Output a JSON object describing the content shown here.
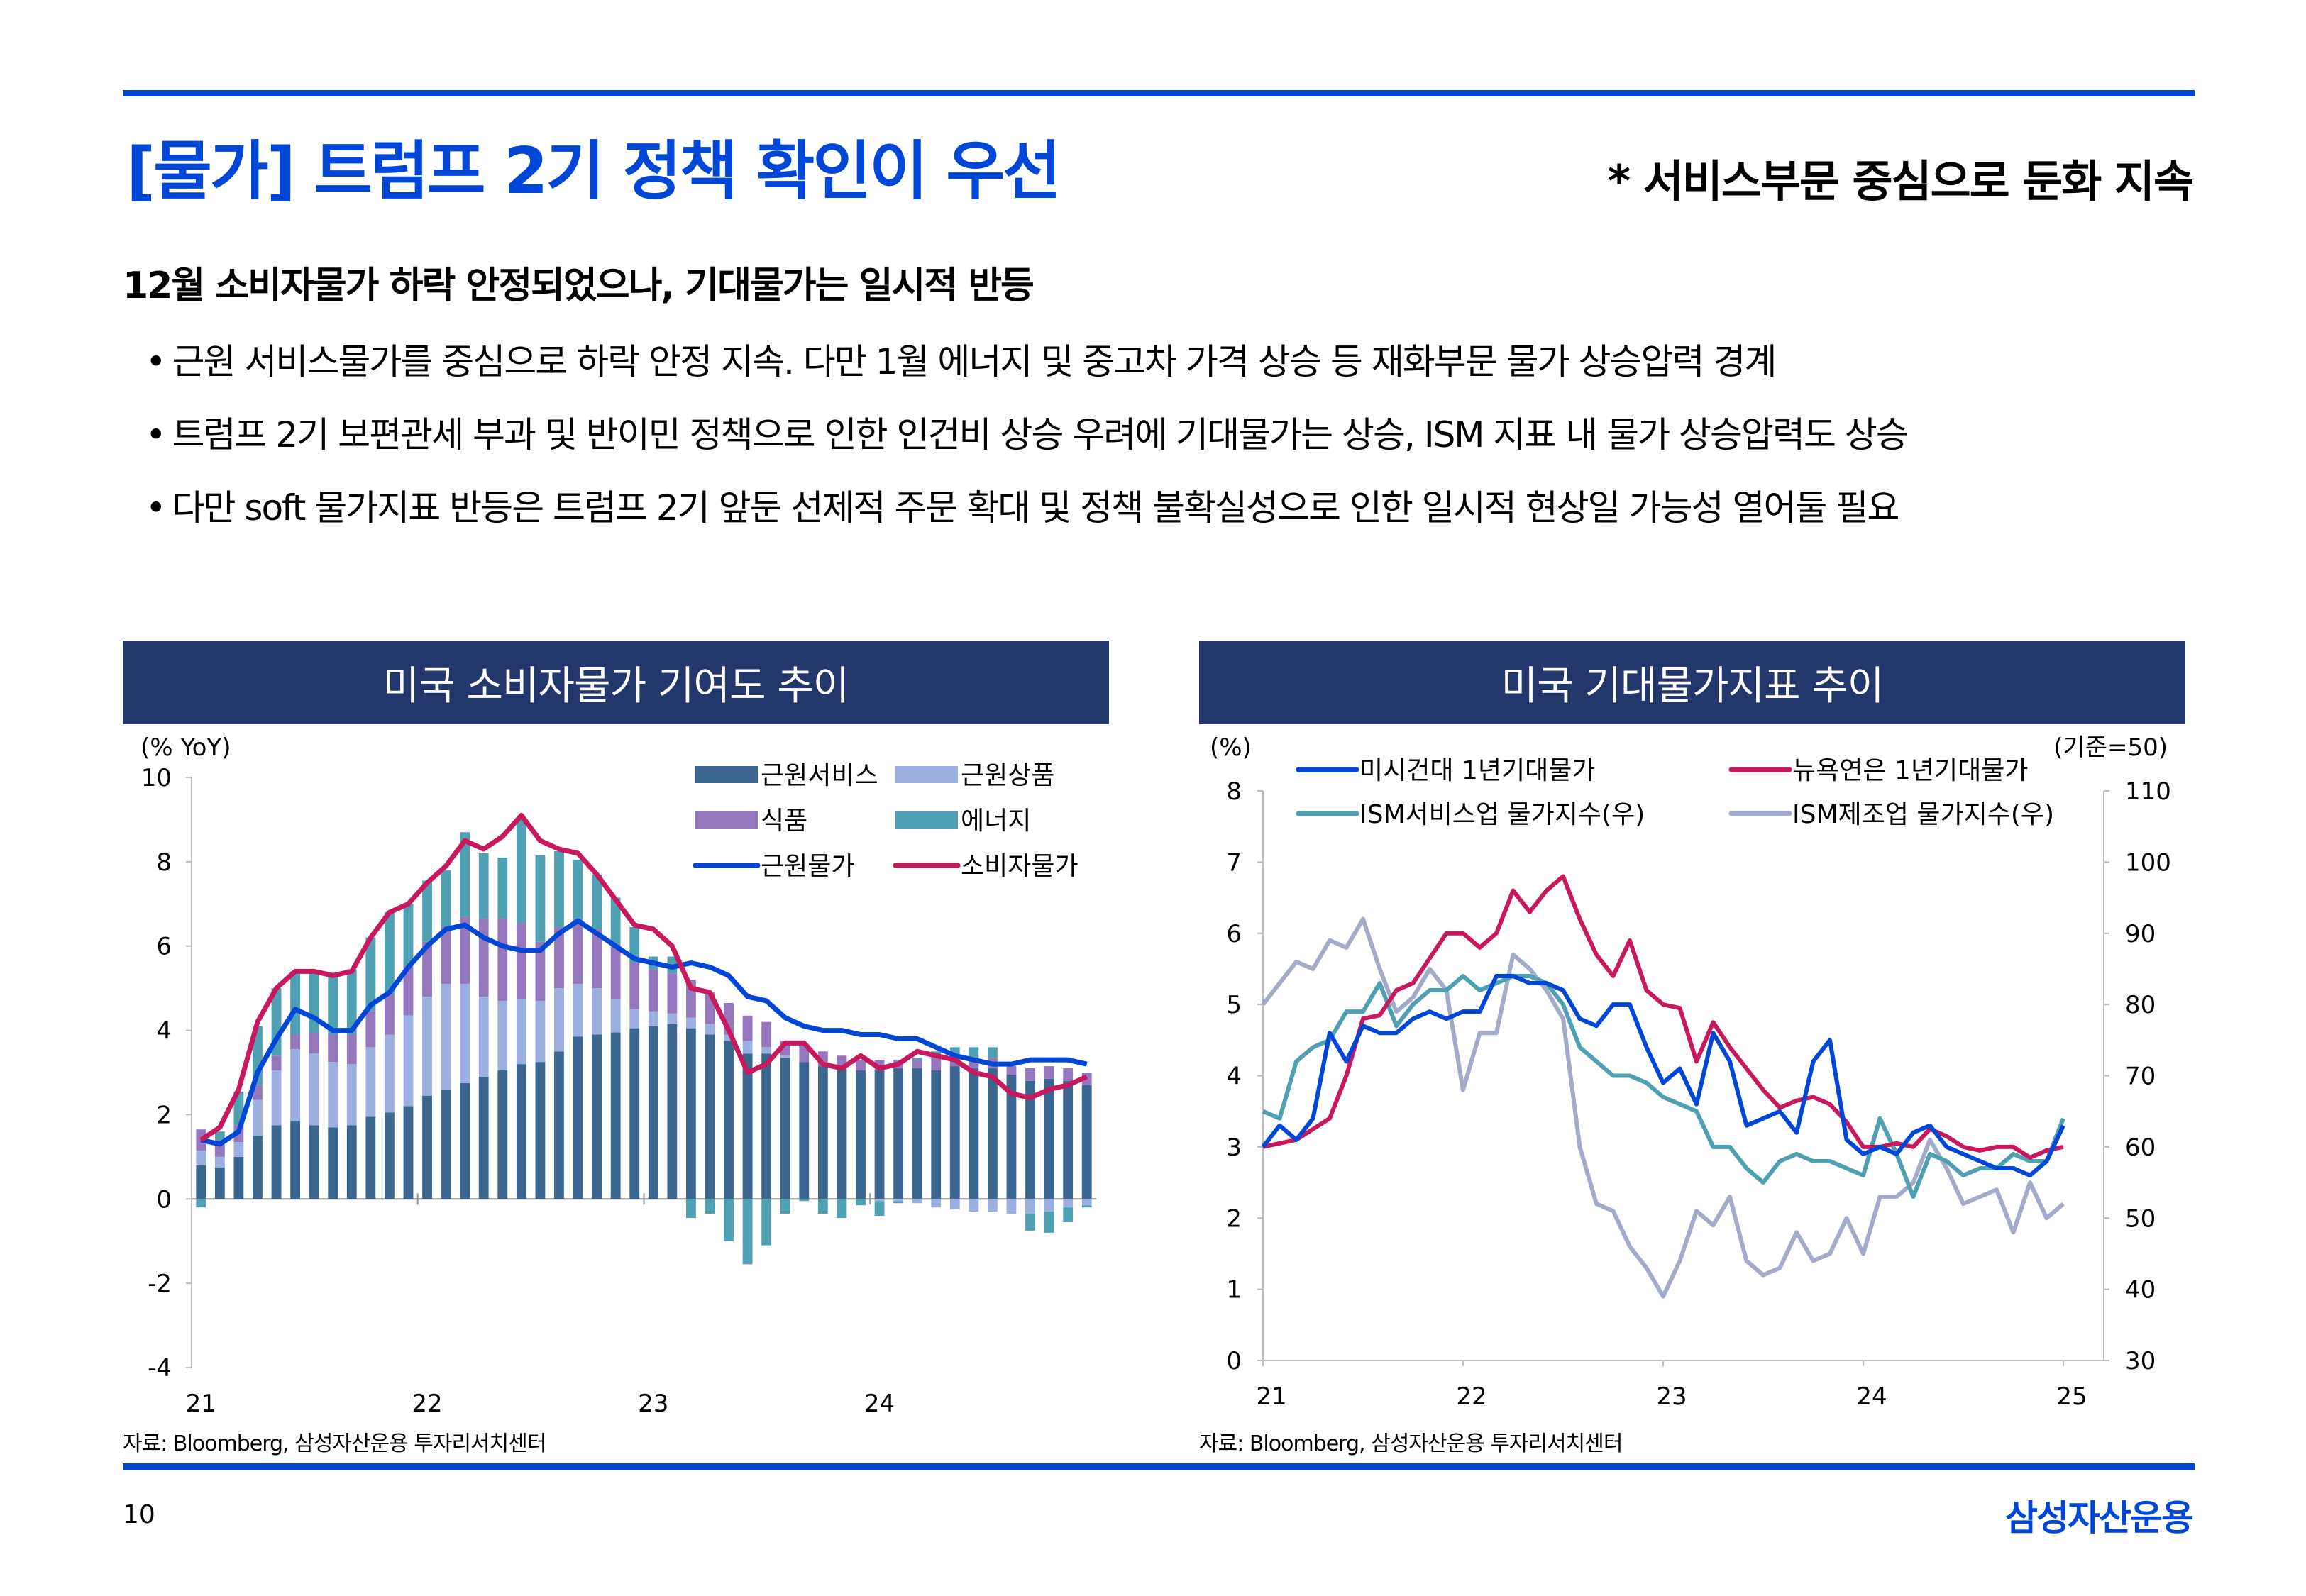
{
  "header": {
    "title": "[물가] 트럼프 2기 정책 확인이 우선",
    "subtitle_right": "* 서비스부문  중심으로 둔화 지속"
  },
  "summary": {
    "headline": "12월 소비자물가 하락 안정되었으나, 기대물가는 일시적 반등",
    "bullet_symbol": "•",
    "bullets": [
      "근원 서비스물가를 중심으로 하락 안정 지속. 다만 1월 에너지 및 중고차 가격 상승 등 재화부문 물가 상승압력 경계",
      "트럼프 2기 보편관세 부과 및 반이민 정책으로 인한 인건비 상승 우려에 기대물가는 상승, ISM 지표 내 물가 상승압력도 상승",
      "다만 soft 물가지표 반등은 트럼프 2기 앞둔 선제적 주문 확대 및 정책 불확실성으로 인한 일시적 현상일 가능성 열어둘 필요"
    ]
  },
  "panels": {
    "left_title": "미국 소비자물가 기여도 추이",
    "right_title": "미국 기대물가지표 추이",
    "left_source": "자료: Bloomberg, 삼성자산운용 투자리서치센터",
    "right_source": "자료: Bloomberg, 삼성자산운용 투자리서치센터"
  },
  "footer": {
    "page_number": "10",
    "brand": "삼성자산운용"
  },
  "chart_data": [
    {
      "type": "bar",
      "stacked": true,
      "title": "미국 소비자물가 기여도 추이",
      "ylabel": "(% YoY)",
      "ylim": [
        -4,
        10
      ],
      "yticks": [
        10,
        8,
        6,
        4,
        2,
        0,
        -2,
        -4
      ],
      "x_period": "2021-01 to 2024-12 monthly",
      "xtick_labels": [
        "21",
        "22",
        "23",
        "24"
      ],
      "legend_position": "top-right",
      "colors": {
        "core_services": "#3a6690",
        "core_goods": "#9bb0e0",
        "food": "#9477bd",
        "energy": "#4fa0b3",
        "core_cpi": "#0047d8",
        "cpi": "#c8195f"
      },
      "series": [
        {
          "name": "근원서비스",
          "kind": "bar",
          "key": "core_services",
          "values": [
            0.8,
            0.75,
            1.0,
            1.5,
            1.75,
            1.85,
            1.75,
            1.7,
            1.75,
            1.95,
            2.05,
            2.2,
            2.45,
            2.6,
            2.75,
            2.9,
            3.05,
            3.2,
            3.25,
            3.5,
            3.85,
            3.9,
            3.95,
            4.05,
            4.1,
            4.15,
            4.05,
            3.9,
            3.75,
            3.45,
            3.45,
            3.35,
            3.25,
            3.15,
            3.1,
            3.05,
            3.05,
            3.1,
            3.1,
            3.05,
            3.15,
            3.1,
            3.1,
            2.95,
            2.8,
            2.85,
            2.8,
            2.7
          ]
        },
        {
          "name": "근원상품",
          "kind": "bar",
          "key": "core_goods",
          "values": [
            0.35,
            0.25,
            0.35,
            0.85,
            1.3,
            1.7,
            1.7,
            1.55,
            1.45,
            1.65,
            1.85,
            2.15,
            2.35,
            2.5,
            2.35,
            1.9,
            1.65,
            1.55,
            1.45,
            1.5,
            1.25,
            1.1,
            0.8,
            0.45,
            0.35,
            0.25,
            0.25,
            0.25,
            0.15,
            0.3,
            0.15,
            0.05,
            0.0,
            0.0,
            0.0,
            0.0,
            -0.05,
            -0.05,
            -0.1,
            -0.2,
            -0.25,
            -0.3,
            -0.3,
            -0.35,
            -0.35,
            -0.3,
            -0.2,
            -0.15
          ]
        },
        {
          "name": "식품",
          "kind": "bar",
          "key": "food",
          "values": [
            0.5,
            0.4,
            0.4,
            0.35,
            0.35,
            0.35,
            0.5,
            0.65,
            0.7,
            0.85,
            0.95,
            1.2,
            1.3,
            1.35,
            1.6,
            1.85,
            1.95,
            1.8,
            1.4,
            1.45,
            1.5,
            1.4,
            1.3,
            1.1,
            1.0,
            0.95,
            0.9,
            0.75,
            0.75,
            0.6,
            0.6,
            0.35,
            0.4,
            0.35,
            0.3,
            0.25,
            0.25,
            0.2,
            0.2,
            0.3,
            0.25,
            0.25,
            0.25,
            0.2,
            0.3,
            0.3,
            0.3,
            0.3
          ]
        },
        {
          "name": "에너지",
          "kind": "bar",
          "key": "energy",
          "values": [
            -0.2,
            0.2,
            0.8,
            1.4,
            1.6,
            1.5,
            1.45,
            1.45,
            1.55,
            1.75,
            1.95,
            1.45,
            1.45,
            1.35,
            2.0,
            1.55,
            1.45,
            2.45,
            2.05,
            1.8,
            1.45,
            1.3,
            1.1,
            0.85,
            0.3,
            0.4,
            -0.45,
            -0.35,
            -1.0,
            -1.55,
            -1.1,
            -0.35,
            -0.05,
            -0.35,
            -0.45,
            -0.15,
            -0.35,
            -0.05,
            0.05,
            0.15,
            0.2,
            0.25,
            0.25,
            0.0,
            -0.4,
            -0.5,
            -0.35,
            -0.05
          ]
        },
        {
          "name": "근원물가",
          "kind": "line",
          "key": "core_cpi",
          "values": [
            1.4,
            1.3,
            1.6,
            3.0,
            3.8,
            4.5,
            4.3,
            4.0,
            4.0,
            4.6,
            4.9,
            5.5,
            6.0,
            6.4,
            6.5,
            6.2,
            6.0,
            5.9,
            5.9,
            6.3,
            6.6,
            6.3,
            6.0,
            5.7,
            5.6,
            5.5,
            5.6,
            5.5,
            5.3,
            4.8,
            4.7,
            4.3,
            4.1,
            4.0,
            4.0,
            3.9,
            3.9,
            3.8,
            3.8,
            3.6,
            3.4,
            3.3,
            3.2,
            3.2,
            3.3,
            3.3,
            3.3,
            3.2
          ]
        },
        {
          "name": "소비자물가",
          "kind": "line",
          "key": "cpi",
          "values": [
            1.4,
            1.7,
            2.6,
            4.2,
            5.0,
            5.4,
            5.4,
            5.3,
            5.4,
            6.2,
            6.8,
            7.0,
            7.5,
            7.9,
            8.5,
            8.3,
            8.6,
            9.1,
            8.5,
            8.3,
            8.2,
            7.7,
            7.1,
            6.5,
            6.4,
            6.0,
            5.0,
            4.9,
            4.0,
            3.0,
            3.2,
            3.7,
            3.7,
            3.2,
            3.1,
            3.4,
            3.1,
            3.2,
            3.5,
            3.4,
            3.3,
            3.0,
            2.9,
            2.5,
            2.4,
            2.6,
            2.7,
            2.9
          ]
        }
      ]
    },
    {
      "type": "line",
      "title": "미국 기대물가지표 추이",
      "ylabel_left": "(%)",
      "ylabel_right": "(기준=50)",
      "ylim_left": [
        0,
        8
      ],
      "ylim_right": [
        30,
        110
      ],
      "yticks_left": [
        8,
        7,
        6,
        5,
        4,
        3,
        2,
        1,
        0
      ],
      "yticks_right": [
        110,
        100,
        90,
        80,
        70,
        60,
        50,
        40,
        30
      ],
      "x_period": "2021-01 to 2025-01 monthly",
      "xtick_labels": [
        "21",
        "22",
        "23",
        "24",
        "25"
      ],
      "legend_position": "top",
      "series": [
        {
          "name": "미시건대 1년기대물가",
          "axis": "left",
          "color": "#0047d8",
          "values": [
            3.0,
            3.3,
            3.1,
            3.4,
            4.6,
            4.2,
            4.7,
            4.6,
            4.6,
            4.8,
            4.9,
            4.8,
            4.9,
            4.9,
            5.4,
            5.4,
            5.3,
            5.3,
            5.2,
            4.8,
            4.7,
            5.0,
            5.0,
            4.4,
            3.9,
            4.1,
            3.6,
            4.6,
            4.2,
            3.3,
            3.4,
            3.5,
            3.2,
            4.2,
            4.5,
            3.1,
            2.9,
            3.0,
            2.9,
            3.2,
            3.3,
            3.0,
            2.9,
            2.8,
            2.7,
            2.7,
            2.6,
            2.8,
            3.3
          ]
        },
        {
          "name": "뉴욕연은 1년기대물가",
          "axis": "left",
          "color": "#c8195f",
          "values": [
            3.0,
            3.05,
            3.1,
            3.25,
            3.4,
            4.0,
            4.8,
            4.85,
            5.2,
            5.3,
            5.65,
            6.0,
            6.0,
            5.8,
            6.0,
            6.6,
            6.3,
            6.6,
            6.8,
            6.2,
            5.7,
            5.4,
            5.9,
            5.2,
            5.0,
            4.95,
            4.2,
            4.75,
            4.4,
            4.1,
            3.8,
            3.55,
            3.65,
            3.7,
            3.6,
            3.35,
            3.0,
            3.0,
            3.05,
            3.0,
            3.25,
            3.15,
            3.0,
            2.95,
            3.0,
            3.0,
            2.85,
            2.95,
            3.0
          ]
        },
        {
          "name": "ISM서비스업 물가지수(우)",
          "axis": "right",
          "color": "#4fa0b3",
          "values": [
            65,
            64,
            72,
            74,
            75,
            79,
            79,
            83,
            77,
            80,
            82,
            82,
            84,
            82,
            83,
            84,
            84,
            83,
            80,
            74,
            72,
            70,
            70,
            69,
            67,
            66,
            65,
            60,
            60,
            57,
            55,
            58,
            59,
            58,
            58,
            57,
            56,
            64,
            59,
            53,
            59,
            58,
            56,
            57,
            57,
            59,
            58,
            58,
            64
          ]
        },
        {
          "name": "ISM제조업 물가지수(우)",
          "axis": "right",
          "color": "#a3abca",
          "values": [
            80,
            83,
            86,
            85,
            89,
            88,
            92,
            85,
            79,
            81,
            85,
            82,
            68,
            76,
            76,
            87,
            85,
            82,
            78,
            60,
            52,
            51,
            46,
            43,
            39,
            44,
            51,
            49,
            53,
            44,
            42,
            43,
            48,
            44,
            45,
            50,
            45,
            53,
            53,
            55,
            61,
            57,
            52,
            53,
            54,
            48,
            55,
            50,
            52
          ]
        }
      ]
    }
  ]
}
